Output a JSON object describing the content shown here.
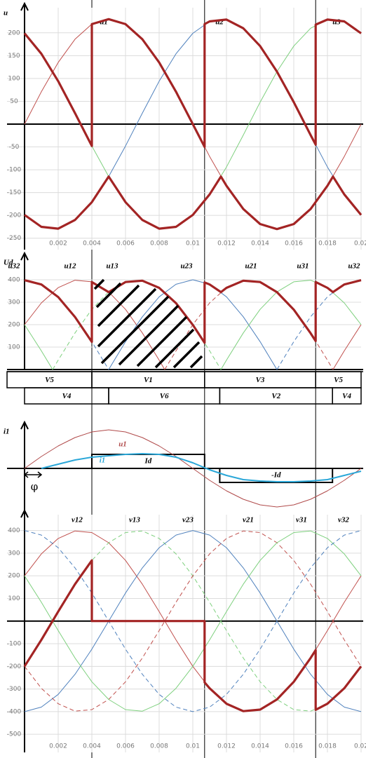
{
  "switch_times": [
    0.004,
    0.0107,
    0.0173
  ],
  "chart_data": [
    {
      "type": "line",
      "ylabel": "u",
      "grid": true,
      "x": [
        0,
        0.001,
        0.002,
        0.003,
        0.004,
        0.005,
        0.006,
        0.007,
        0.008,
        0.009,
        0.01,
        0.011,
        0.012,
        0.013,
        0.014,
        0.015,
        0.016,
        0.017,
        0.018,
        0.019,
        0.02
      ],
      "xticks": [
        0.002,
        0.004,
        0.006,
        0.008,
        0.01,
        0.012,
        0.014,
        0.016,
        0.018,
        0.02
      ],
      "ylim": [
        -275,
        255
      ],
      "yticks": [
        -250,
        -200,
        -150,
        -100,
        -50,
        50,
        100,
        150,
        200
      ],
      "series": [
        {
          "name": "u1",
          "color": "#c0504d",
          "style": "thin",
          "values": [
            0,
            71,
            135,
            186,
            219,
            230,
            219,
            186,
            135,
            71,
            0,
            -71,
            -135,
            -186,
            -219,
            -230,
            -219,
            -186,
            -135,
            -71,
            0
          ]
        },
        {
          "name": "u2",
          "color": "#4f81bd",
          "style": "thin",
          "values": [
            -199,
            -225,
            -229,
            -210,
            -171,
            -115,
            -48,
            24,
            94,
            154,
            199,
            225,
            229,
            210,
            171,
            115,
            48,
            -24,
            -94,
            -154,
            -199
          ]
        },
        {
          "name": "u3",
          "color": "#7ed07e",
          "style": "thin",
          "values": [
            199,
            154,
            94,
            24,
            -48,
            -115,
            -171,
            -210,
            -229,
            -225,
            -199,
            -154,
            -94,
            -24,
            48,
            115,
            171,
            210,
            229,
            225,
            199
          ]
        },
        {
          "color": "#a32424",
          "style": "thick",
          "x": [
            0,
            0.001,
            0.002,
            0.003,
            0.004,
            0.004,
            0.005,
            0.006,
            0.007,
            0.008,
            0.009,
            0.01,
            0.0107,
            0.0107,
            0.011,
            0.012,
            0.013,
            0.014,
            0.015,
            0.016,
            0.017,
            0.0173,
            0.0173,
            0.018,
            0.019,
            0.02
          ],
          "values": [
            199,
            154,
            94,
            24,
            -48,
            219,
            230,
            219,
            186,
            135,
            71,
            0,
            -50,
            219,
            225,
            229,
            210,
            171,
            115,
            48,
            -24,
            -45,
            218,
            229,
            225,
            199
          ]
        },
        {
          "color": "#a32424",
          "style": "thick",
          "x": [
            0,
            0.001,
            0.002,
            0.003,
            0.004,
            0.005,
            0.006,
            0.007,
            0.008,
            0.009,
            0.01,
            0.011,
            0.01167,
            0.012,
            0.013,
            0.014,
            0.015,
            0.016,
            0.017,
            0.018,
            0.01833,
            0.019,
            0.02
          ],
          "values": [
            -199,
            -225,
            -229,
            -210,
            -171,
            -115,
            -171,
            -210,
            -229,
            -225,
            -199,
            -154,
            -115,
            -135,
            -186,
            -219,
            -230,
            -219,
            -186,
            -135,
            -115,
            -154,
            -199
          ]
        }
      ]
    },
    {
      "type": "line",
      "ylabel": "Ud",
      "grid": true,
      "ylim": [
        0,
        500
      ],
      "yticks": [
        100,
        200,
        300,
        400
      ],
      "series": [
        {
          "name": "u12",
          "color": "#c0504d",
          "style": "thin",
          "x": [
            0,
            0.001,
            0.002,
            0.003,
            0.004,
            0.005,
            0.006,
            0.007,
            0.008,
            0.00833,
            null,
            0.01833,
            0.019,
            0.02
          ],
          "values": [
            200,
            297,
            365,
            398,
            391,
            346,
            268,
            163,
            42,
            0,
            null,
            0,
            83,
            200
          ]
        },
        {
          "name": "u13",
          "color": "#7ed07e",
          "style": "dashed",
          "x": [
            0.00167,
            0.002,
            0.003,
            0.004,
            0.005,
            0.006,
            0.007,
            0.008,
            0.009,
            0.01,
            0.011,
            0.01167
          ],
          "values": [
            0,
            42,
            163,
            268,
            346,
            391,
            398,
            365,
            297,
            200,
            83,
            0
          ]
        },
        {
          "name": "u23",
          "color": "#4f81bd",
          "style": "thin",
          "x": [
            0.005,
            0.006,
            0.007,
            0.008,
            0.009,
            0.01,
            0.011,
            0.012,
            0.013,
            0.014,
            0.015
          ],
          "values": [
            0,
            124,
            235,
            324,
            380,
            400,
            380,
            324,
            235,
            124,
            0
          ]
        },
        {
          "name": "u21",
          "color": "#c0504d",
          "style": "dashed",
          "x": [
            0.00833,
            0.009,
            0.01,
            0.011,
            0.012,
            0.013,
            0.014,
            0.015,
            0.016,
            0.017,
            0.018,
            0.01833
          ],
          "values": [
            0,
            83,
            200,
            297,
            365,
            398,
            391,
            346,
            268,
            163,
            42,
            0
          ]
        },
        {
          "name": "u31",
          "color": "#7ed07e",
          "style": "thin",
          "x": [
            0,
            0.001,
            0.00167,
            null,
            0.01167,
            0.012,
            0.013,
            0.014,
            0.015,
            0.016,
            0.017,
            0.018,
            0.019,
            0.02
          ],
          "values": [
            200,
            83,
            0,
            null,
            0,
            42,
            163,
            268,
            346,
            391,
            398,
            365,
            297,
            200
          ]
        },
        {
          "name": "u32",
          "color": "#4f81bd",
          "style": "dashed",
          "x": [
            0,
            0.001,
            0.002,
            0.003,
            0.004,
            0.005,
            null,
            0.015,
            0.016,
            0.017,
            0.018,
            0.019,
            0.02
          ],
          "values": [
            400,
            380,
            324,
            235,
            124,
            0,
            null,
            0,
            124,
            235,
            324,
            380,
            400
          ]
        },
        {
          "color": "#a32424",
          "style": "thick",
          "x": [
            0,
            0.001,
            0.002,
            0.003,
            0.004,
            0.004,
            0.005,
            0.006,
            0.007,
            0.008,
            0.009,
            0.01,
            0.0107,
            0.0107,
            0.011,
            0.01167,
            0.012,
            0.013,
            0.014,
            0.015,
            0.016,
            0.017,
            0.0173,
            0.0173,
            0.018,
            0.01833,
            0.019,
            0.02
          ],
          "values": [
            398,
            379,
            323,
            234,
            123,
            390,
            345,
            390,
            396,
            364,
            296,
            199,
            119,
            388,
            379,
            345,
            364,
            396,
            390,
            345,
            267,
            162,
            127,
            390,
            364,
            345,
            379,
            398
          ]
        }
      ]
    },
    {
      "type": "timeline",
      "rows": [
        [
          {
            "label": "V5",
            "start": -0.00104,
            "end": 0.004
          },
          {
            "label": "V1",
            "start": 0.004,
            "end": 0.0107
          },
          {
            "label": "V3",
            "start": 0.0107,
            "end": 0.0173
          },
          {
            "label": "V5",
            "start": 0.0173,
            "end": 0.02
          }
        ],
        [
          {
            "label": "V4",
            "start": 0,
            "end": 0.005
          },
          {
            "label": "V6",
            "start": 0.005,
            "end": 0.0116
          },
          {
            "label": "V2",
            "start": 0.0116,
            "end": 0.0183
          },
          {
            "label": "V4",
            "start": 0.0183,
            "end": 0.02
          }
        ]
      ]
    },
    {
      "type": "line",
      "ylabel": "i1",
      "ylim": [
        -60,
        60
      ],
      "x": [
        0,
        0.001,
        0.002,
        0.003,
        0.004,
        0.005,
        0.006,
        0.007,
        0.008,
        0.009,
        0.01,
        0.011,
        0.012,
        0.013,
        0.014,
        0.015,
        0.016,
        0.017,
        0.018,
        0.019,
        0.02
      ],
      "series": [
        {
          "name": "u1",
          "color": "#b04a4a",
          "style": "thin",
          "values": [
            0,
            17,
            32,
            44,
            52,
            55,
            52,
            44,
            32,
            17,
            0,
            -17,
            -32,
            -44,
            -52,
            -55,
            -52,
            -44,
            -32,
            -17,
            0
          ]
        },
        {
          "name": "i1",
          "color": "#2aa7d8",
          "style": "medium",
          "values": [
            null,
            0,
            6,
            12,
            16,
            18,
            20,
            21,
            20,
            16,
            8,
            -2,
            -10,
            -16,
            -18,
            -19,
            -19,
            -18,
            -16,
            -10,
            -4
          ]
        }
      ],
      "levels": [
        {
          "label": "Id",
          "start": 0.004,
          "end": 0.0107,
          "value": 20
        },
        {
          "label": "-Id",
          "start": 0.0116,
          "end": 0.0183,
          "value": -20
        }
      ],
      "phi": {
        "label": "φ",
        "start": 0,
        "end": 0.001
      }
    },
    {
      "type": "line",
      "grid": true,
      "x": [
        0,
        0.001,
        0.002,
        0.003,
        0.004,
        0.005,
        0.006,
        0.007,
        0.008,
        0.009,
        0.01,
        0.011,
        0.012,
        0.013,
        0.014,
        0.015,
        0.016,
        0.017,
        0.018,
        0.019,
        0.02
      ],
      "xticks": [
        0.002,
        0.004,
        0.006,
        0.008,
        0.01,
        0.012,
        0.014,
        0.016,
        0.018,
        0.02
      ],
      "ylim": [
        -580,
        470
      ],
      "yticks": [
        -500,
        -400,
        -300,
        -200,
        -100,
        100,
        200,
        300,
        400
      ],
      "series": [
        {
          "name": "v12",
          "color": "#c0504d",
          "style": "thin",
          "values": [
            200,
            297,
            365,
            398,
            391,
            346,
            268,
            163,
            42,
            -83,
            -200,
            -297,
            -365,
            -398,
            -391,
            -346,
            -268,
            -163,
            -42,
            83,
            200
          ]
        },
        {
          "name": "v13",
          "color": "#7ed07e",
          "style": "dashed",
          "values": [
            -200,
            -83,
            42,
            163,
            268,
            346,
            391,
            398,
            365,
            297,
            200,
            83,
            -42,
            -163,
            -268,
            -346,
            -391,
            -398,
            -365,
            -297,
            -200
          ]
        },
        {
          "name": "v23",
          "color": "#4f81bd",
          "style": "thin",
          "values": [
            -400,
            -380,
            -324,
            -235,
            -124,
            0,
            124,
            235,
            324,
            380,
            400,
            380,
            324,
            235,
            124,
            0,
            -124,
            -235,
            -324,
            -380,
            -400
          ]
        },
        {
          "name": "v21",
          "color": "#c0504d",
          "style": "dashed",
          "values": [
            -200,
            -297,
            -365,
            -398,
            -391,
            -346,
            -268,
            -163,
            -42,
            83,
            200,
            297,
            365,
            398,
            391,
            346,
            268,
            163,
            42,
            -83,
            -200
          ]
        },
        {
          "name": "v31",
          "color": "#7ed07e",
          "style": "thin",
          "values": [
            200,
            83,
            -42,
            -163,
            -268,
            -346,
            -391,
            -398,
            -365,
            -297,
            -200,
            -83,
            42,
            163,
            268,
            346,
            391,
            398,
            365,
            297,
            200
          ]
        },
        {
          "name": "v32",
          "color": "#4f81bd",
          "style": "dashed",
          "values": [
            400,
            380,
            324,
            235,
            124,
            0,
            -124,
            -235,
            -324,
            -380,
            -400,
            -380,
            -324,
            -235,
            -124,
            0,
            124,
            235,
            324,
            380,
            400
          ]
        },
        {
          "color": "#a32424",
          "style": "thick",
          "x": [
            0,
            0.001,
            0.002,
            0.003,
            0.004,
            0.004,
            0.0107,
            0.0107,
            0.011,
            0.012,
            0.013,
            0.014,
            0.015,
            0.016,
            0.017,
            0.0173,
            0.0173,
            0.018,
            0.019,
            0.02
          ],
          "values": [
            -200,
            -83,
            42,
            163,
            268,
            0,
            0,
            -271,
            -297,
            -365,
            -398,
            -391,
            -346,
            -268,
            -163,
            -128,
            -392,
            -365,
            -297,
            -200
          ]
        }
      ]
    }
  ]
}
